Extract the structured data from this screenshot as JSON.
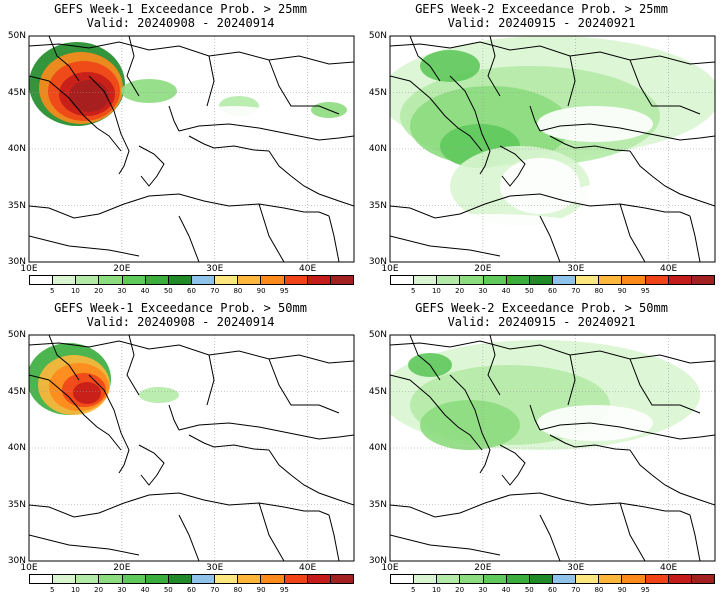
{
  "panels": [
    {
      "title": "GEFS Week-1 Exceedance Prob. > 25mm",
      "valid": "Valid: 20240908 - 20240914",
      "intensity": "high",
      "week": 1
    },
    {
      "title": "GEFS Week-2 Exceedance Prob. > 25mm",
      "valid": "Valid: 20240915 - 20240921",
      "intensity": "broad",
      "week": 2
    },
    {
      "title": "GEFS Week-1 Exceedance Prob. > 50mm",
      "valid": "Valid: 20240908 - 20240914",
      "intensity": "high-small",
      "week": 1
    },
    {
      "title": "GEFS Week-2 Exceedance Prob. > 50mm",
      "valid": "Valid: 20240915 - 20240921",
      "intensity": "light",
      "week": 2
    }
  ],
  "axes": {
    "lat_labels": [
      "50N",
      "45N",
      "40N",
      "35N",
      "30N"
    ],
    "lon_labels": [
      "10E",
      "20E",
      "30E",
      "40E"
    ]
  },
  "colorbar": {
    "colors": [
      "#ffffff",
      "#d9f5d0",
      "#b4eaa7",
      "#8ddc7f",
      "#5fc95c",
      "#3aad3c",
      "#1f8a27",
      "#8fc3ea",
      "#ffe780",
      "#ffb63a",
      "#ff8a1c",
      "#f04418",
      "#c41c1a",
      "#a32020"
    ],
    "labels": [
      "5",
      "10",
      "20",
      "30",
      "40",
      "50",
      "60",
      "70",
      "80",
      "90",
      "95"
    ]
  }
}
